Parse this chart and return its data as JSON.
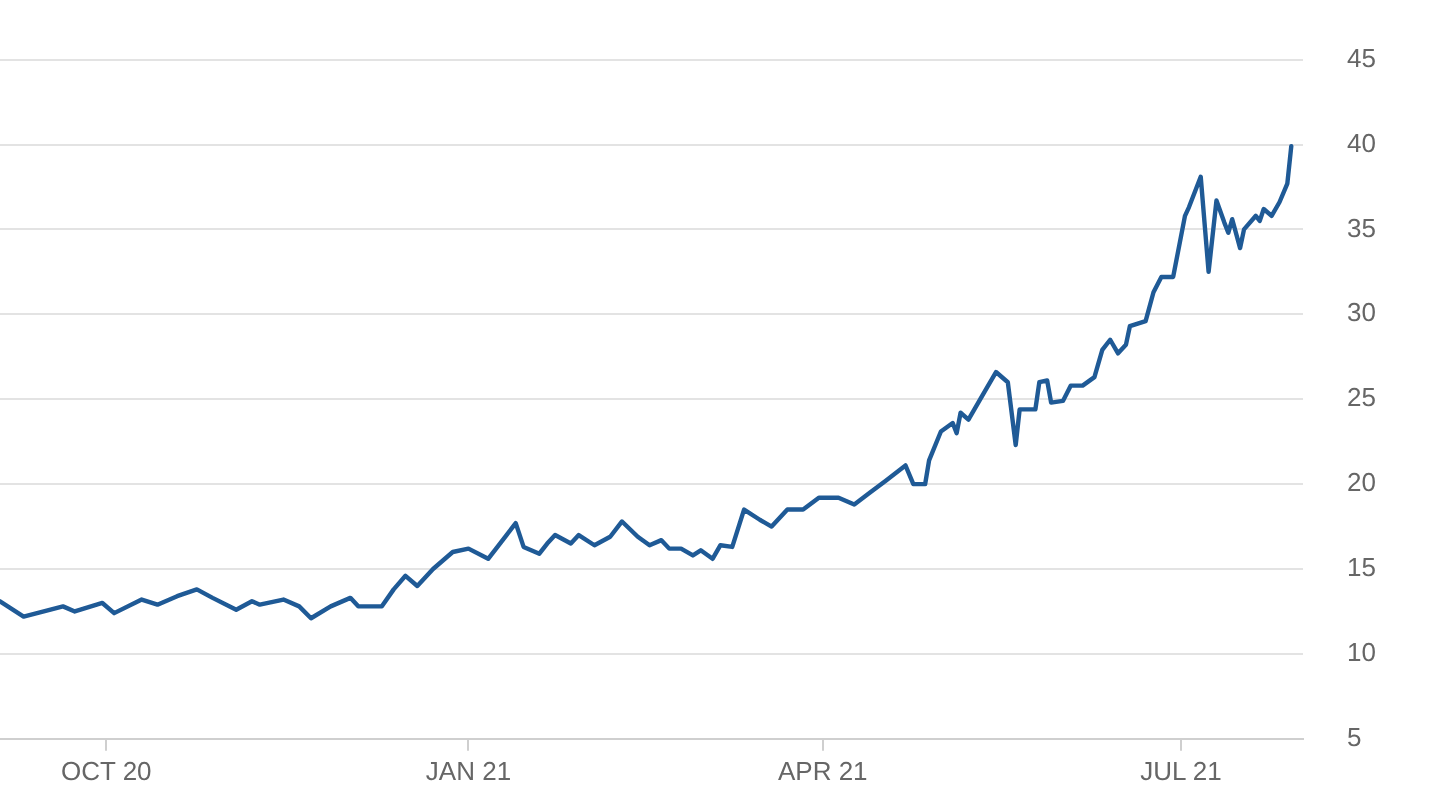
{
  "chart_data": {
    "type": "line",
    "x": [
      "2020-09-04",
      "2020-09-10",
      "2020-09-20",
      "2020-09-23",
      "2020-09-30",
      "2020-10-03",
      "2020-10-10",
      "2020-10-14",
      "2020-10-19",
      "2020-10-24",
      "2020-10-28",
      "2020-11-03",
      "2020-11-07",
      "2020-11-09",
      "2020-11-15",
      "2020-11-19",
      "2020-11-22",
      "2020-11-27",
      "2020-12-02",
      "2020-12-04",
      "2020-12-10",
      "2020-12-13",
      "2020-12-16",
      "2020-12-19",
      "2020-12-23",
      "2020-12-28",
      "2021-01-01",
      "2021-01-06",
      "2021-01-09",
      "2021-01-13",
      "2021-01-15",
      "2021-01-19",
      "2021-01-21",
      "2021-01-23",
      "2021-01-27",
      "2021-01-29",
      "2021-02-02",
      "2021-02-06",
      "2021-02-09",
      "2021-02-13",
      "2021-02-16",
      "2021-02-19",
      "2021-02-21",
      "2021-02-24",
      "2021-02-27",
      "2021-03-01",
      "2021-03-04",
      "2021-03-06",
      "2021-03-09",
      "2021-03-12",
      "2021-03-16",
      "2021-03-19",
      "2021-03-23",
      "2021-03-27",
      "2021-03-31",
      "2021-04-05",
      "2021-04-09",
      "2021-04-13",
      "2021-04-17",
      "2021-04-22",
      "2021-04-24",
      "2021-04-27",
      "2021-04-28",
      "2021-05-01",
      "2021-05-04",
      "2021-05-05",
      "2021-05-06",
      "2021-05-08",
      "2021-05-12",
      "2021-05-14",
      "2021-05-15",
      "2021-05-18",
      "2021-05-20",
      "2021-05-21",
      "2021-05-25",
      "2021-05-26",
      "2021-05-28",
      "2021-05-29",
      "2021-06-01",
      "2021-06-03",
      "2021-06-06",
      "2021-06-09",
      "2021-06-11",
      "2021-06-13",
      "2021-06-15",
      "2021-06-17",
      "2021-06-18",
      "2021-06-22",
      "2021-06-24",
      "2021-06-26",
      "2021-06-29",
      "2021-07-02",
      "2021-07-03",
      "2021-07-06",
      "2021-07-08",
      "2021-07-10",
      "2021-07-12",
      "2021-07-13",
      "2021-07-14",
      "2021-07-16",
      "2021-07-17",
      "2021-07-20",
      "2021-07-21",
      "2021-07-22",
      "2021-07-24",
      "2021-07-26",
      "2021-07-28",
      "2021-07-29"
    ],
    "series": [
      {
        "color": "#1f5a96",
        "values": [
          13.1,
          12.2,
          12.8,
          12.5,
          13.0,
          12.4,
          13.2,
          12.9,
          13.4,
          13.8,
          13.3,
          12.6,
          13.1,
          12.9,
          13.2,
          12.8,
          12.1,
          12.8,
          13.3,
          12.8,
          12.8,
          13.8,
          14.6,
          14.0,
          15.0,
          16.0,
          16.2,
          15.6,
          16.5,
          17.7,
          16.3,
          15.9,
          16.5,
          17.0,
          16.5,
          17.0,
          16.4,
          16.9,
          17.8,
          16.9,
          16.4,
          16.7,
          16.2,
          16.2,
          15.8,
          16.1,
          15.6,
          16.4,
          16.3,
          18.5,
          17.9,
          17.5,
          18.5,
          18.5,
          19.2,
          19.2,
          18.8,
          19.5,
          20.2,
          21.1,
          20.0,
          20.0,
          21.4,
          23.1,
          23.6,
          23.0,
          24.2,
          23.8,
          25.4,
          26.2,
          26.6,
          26.0,
          22.3,
          24.4,
          24.4,
          26.0,
          26.1,
          24.8,
          24.9,
          25.8,
          25.8,
          26.3,
          27.9,
          28.5,
          27.7,
          28.2,
          29.3,
          29.6,
          31.3,
          32.2,
          32.2,
          35.8,
          36.3,
          38.1,
          32.5,
          36.7,
          35.4,
          34.8,
          35.6,
          33.9,
          35.0,
          35.8,
          35.5,
          36.2,
          35.8,
          36.6,
          37.7,
          39.9
        ]
      }
    ],
    "xlim": [
      "2020-09-04",
      "2021-08-01"
    ],
    "xticks": [
      {
        "value": "2020-10-01",
        "label": "OCT 20"
      },
      {
        "value": "2021-01-01",
        "label": "JAN 21"
      },
      {
        "value": "2021-04-01",
        "label": "APR 21"
      },
      {
        "value": "2021-07-01",
        "label": "JUL 21"
      }
    ],
    "ylim": [
      5,
      45
    ],
    "yticks": [
      5,
      10,
      15,
      20,
      25,
      30,
      35,
      40,
      45
    ],
    "grid": "y",
    "legend": false,
    "marker": "none",
    "line_style": "solid"
  }
}
